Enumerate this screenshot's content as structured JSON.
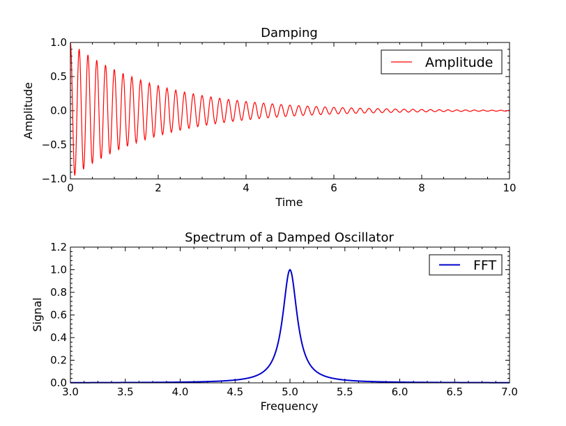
{
  "chart_data": [
    {
      "type": "line",
      "title": "Damping",
      "xlabel": "Time",
      "ylabel": "Amplitude",
      "xlim": [
        0,
        10
      ],
      "ylim": [
        -1.0,
        1.0
      ],
      "xticks": [
        0,
        2,
        4,
        6,
        8,
        10
      ],
      "xtick_labels": [
        "0",
        "2",
        "4",
        "6",
        "8",
        "10"
      ],
      "yticks": [
        -1.0,
        -0.5,
        0.0,
        0.5,
        1.0
      ],
      "ytick_labels": [
        "−1.0",
        "−0.5",
        "0.0",
        "0.5",
        "1.0"
      ],
      "grid": false,
      "legend_position": "top-right",
      "series": [
        {
          "name": "Amplitude",
          "color": "#ff0000",
          "function": "exp(-0.5*t)*cos(2*pi*5*t)",
          "t_start": 0,
          "t_end": 10,
          "samples": 1000
        }
      ]
    },
    {
      "type": "line",
      "title": "Spectrum of a Damped Oscillator",
      "xlabel": "Frequency",
      "ylabel": "Signal",
      "xlim": [
        3.0,
        7.0
      ],
      "ylim": [
        0.0,
        1.2
      ],
      "xticks": [
        3.0,
        3.5,
        4.0,
        4.5,
        5.0,
        5.5,
        6.0,
        6.5,
        7.0
      ],
      "xtick_labels": [
        "3.0",
        "3.5",
        "4.0",
        "4.5",
        "5.0",
        "5.5",
        "6.0",
        "6.5",
        "7.0"
      ],
      "yticks": [
        0.0,
        0.2,
        0.4,
        0.6,
        0.8,
        1.0,
        1.2
      ],
      "ytick_labels": [
        "0.0",
        "0.2",
        "0.4",
        "0.6",
        "0.8",
        "1.0",
        "1.2"
      ],
      "grid": false,
      "legend_position": "top-right",
      "series": [
        {
          "name": "FFT",
          "color": "#0000cc",
          "function": "lorentzian peak normalized to 1",
          "center": 5.0,
          "half_width": 0.08,
          "peak": 1.0,
          "f_start": 3.0,
          "f_end": 7.0,
          "samples": 600
        }
      ]
    }
  ]
}
